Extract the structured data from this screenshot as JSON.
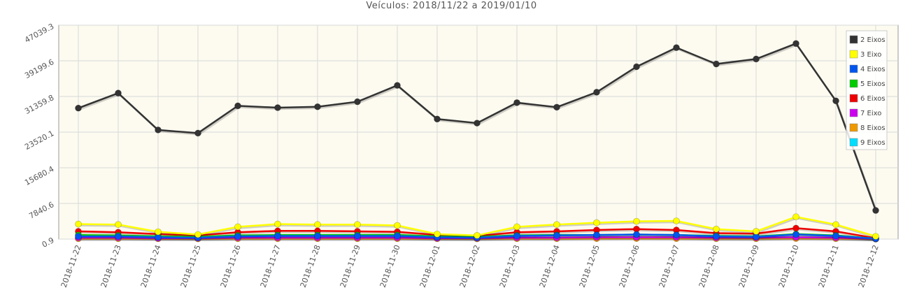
{
  "chart_data": {
    "type": "line",
    "title": "Veículos: 2018/11/22 a 2019/01/10",
    "xlabel": "",
    "ylabel": "",
    "ylim": [
      0.9,
      47039.3
    ],
    "y_ticks": [
      "0.9",
      "7840.6",
      "15680.4",
      "23520.1",
      "31359.8",
      "39199.6",
      "47039.3"
    ],
    "categories": [
      "2018-11-22",
      "2018-11-23",
      "2018-11-24",
      "2018-11-25",
      "2018-11-26",
      "2018-11-27",
      "2018-11-28",
      "2018-11-29",
      "2018-11-30",
      "2018-12-01",
      "2018-12-02",
      "2018-12-03",
      "2018-12-04",
      "2018-12-05",
      "2018-12-06",
      "2018-12-07",
      "2018-12-08",
      "2018-12-09",
      "2018-12-10",
      "2018-12-11",
      "2018-12-12"
    ],
    "grid": true,
    "legend_position": "top-right",
    "series": [
      {
        "name": "2 Eixos",
        "color": "#333333",
        "values": [
          28800,
          32100,
          24000,
          23300,
          29300,
          28900,
          29100,
          30200,
          33800,
          26400,
          25500,
          30000,
          29000,
          32300,
          37900,
          42100,
          38500,
          39600,
          43000,
          30400,
          6300
        ]
      },
      {
        "name": "3 Eixo",
        "color": "#ffff00",
        "values": [
          3300,
          3200,
          1600,
          1000,
          2700,
          3300,
          3200,
          3200,
          3000,
          1100,
          800,
          2700,
          3200,
          3600,
          3900,
          4000,
          2200,
          1700,
          4900,
          3200,
          600
        ]
      },
      {
        "name": "4 Eixos",
        "color": "#0055ee",
        "values": [
          600,
          600,
          400,
          300,
          600,
          700,
          700,
          700,
          700,
          400,
          300,
          700,
          800,
          900,
          1000,
          900,
          600,
          500,
          1000,
          700,
          100
        ]
      },
      {
        "name": "5 Eixos",
        "color": "#00cc00",
        "values": [
          900,
          800,
          600,
          500,
          800,
          900,
          900,
          900,
          900,
          600,
          500,
          800,
          900,
          900,
          1000,
          900,
          700,
          600,
          1100,
          800,
          100
        ]
      },
      {
        "name": "6 Eixos",
        "color": "#ee0000",
        "values": [
          1700,
          1500,
          1100,
          800,
          1500,
          1800,
          1800,
          1700,
          1600,
          900,
          700,
          1500,
          1700,
          2000,
          2200,
          2000,
          1300,
          1200,
          2400,
          1700,
          200
        ]
      },
      {
        "name": "7 Eixo",
        "color": "#cc00ee",
        "values": [
          300,
          300,
          200,
          200,
          300,
          300,
          300,
          300,
          300,
          200,
          200,
          300,
          300,
          400,
          400,
          400,
          300,
          300,
          400,
          300,
          50
        ]
      },
      {
        "name": "8 Eixos",
        "color": "#ee9900",
        "values": [
          100,
          100,
          80,
          70,
          100,
          100,
          100,
          100,
          100,
          80,
          70,
          100,
          100,
          120,
          130,
          120,
          100,
          90,
          130,
          100,
          20
        ]
      },
      {
        "name": "9 Eixos",
        "color": "#00ddff",
        "values": [
          200,
          200,
          150,
          100,
          200,
          250,
          250,
          250,
          250,
          150,
          100,
          250,
          250,
          300,
          350,
          300,
          200,
          150,
          300,
          250,
          30
        ]
      }
    ]
  }
}
